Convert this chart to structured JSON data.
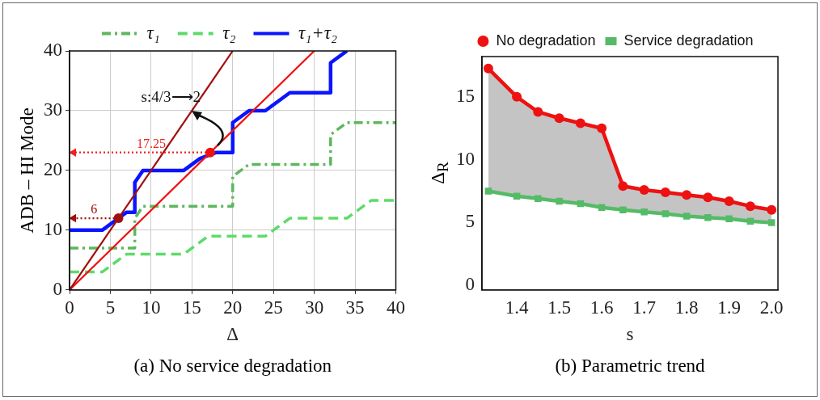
{
  "chart_data": [
    {
      "type": "line",
      "xlabel": "Δ",
      "ylabel": "ADB – HI Mode",
      "xlim": [
        0,
        40
      ],
      "ylim": [
        0,
        40
      ],
      "xticks": [
        0,
        5,
        10,
        15,
        20,
        25,
        30,
        35,
        40
      ],
      "yticks": [
        0,
        10,
        20,
        30,
        40
      ],
      "grid": true,
      "legend": "top",
      "marker": "none",
      "annotations": [
        {
          "text": "s:4/3⟶2",
          "x": 15,
          "y": 30
        },
        {
          "text": "17.25",
          "x": 10,
          "y": 23
        },
        {
          "text": "6",
          "x": 3,
          "y": 12
        },
        "(a) No service degradation"
      ],
      "series": [
        {
          "name": "τ₁",
          "color": "#5cb85c",
          "line_style": "dashdot",
          "x": [
            0,
            8,
            8,
            9,
            20,
            20,
            22,
            32,
            32,
            34,
            40
          ],
          "values": [
            7,
            7,
            12,
            14,
            14,
            19,
            21,
            21,
            26,
            28,
            28
          ]
        },
        {
          "name": "τ₂",
          "color": "#5ddb6a",
          "line_style": "dashed",
          "x": [
            0,
            4,
            7,
            14,
            17,
            24,
            27,
            34,
            37,
            40
          ],
          "values": [
            3,
            3,
            6,
            6,
            9,
            9,
            12,
            12,
            15,
            15
          ]
        },
        {
          "name": "τ₁+τ₂",
          "color": "#0a14ff",
          "x": [
            0,
            4,
            6,
            7,
            8,
            8,
            9,
            10,
            14,
            16,
            18,
            20,
            20,
            22,
            24,
            27,
            32,
            32,
            34
          ],
          "values": [
            10,
            10,
            12,
            13,
            13,
            18,
            20,
            20,
            20,
            22,
            23,
            23,
            28,
            30,
            30,
            33,
            33,
            38,
            40
          ]
        },
        {
          "color": "#ee1111",
          "x": [
            0,
            30
          ],
          "values": [
            0,
            40
          ]
        },
        {
          "color": "#a01010",
          "x": [
            0,
            20
          ],
          "values": [
            0,
            40
          ]
        },
        {
          "color": "#ee2222",
          "line_style": "dotted",
          "marker": "triangle",
          "x": [
            17.25,
            0.5
          ],
          "values": [
            23,
            23
          ]
        },
        {
          "color": "#a01010",
          "line_style": "dotted",
          "marker": "triangle",
          "x": [
            6,
            0.5
          ],
          "values": [
            12,
            12
          ]
        },
        {
          "type": "scatter",
          "color": "#ee1111",
          "marker": "circle",
          "x": [
            17.25
          ],
          "values": [
            23
          ]
        },
        {
          "type": "scatter",
          "color": "#a01010",
          "marker": "circle",
          "x": [
            6
          ],
          "values": [
            12
          ]
        }
      ]
    },
    {
      "type": "line",
      "xlabel": "s",
      "ylabel": "Δ$_{R}$",
      "x": [
        1.333,
        1.4,
        1.45,
        1.5,
        1.55,
        1.6,
        1.65,
        1.7,
        1.75,
        1.8,
        1.85,
        1.9,
        1.95,
        2.0
      ],
      "xlim": [
        1.318,
        2.015
      ],
      "ylim": [
        -0.36,
        18.2
      ],
      "xticks": [
        1.4,
        1.5,
        1.6,
        1.7,
        1.8,
        1.9,
        {
          "value": 2,
          "label": "2.0"
        }
      ],
      "yticks": [
        0,
        5,
        10,
        15
      ],
      "legend": "top",
      "annotations": [
        "(b) Parametric trend"
      ],
      "series": [
        {
          "name": "No degradation",
          "color": "#ee1111",
          "marker": "circle",
          "values": [
            17.25,
            15.0,
            13.8,
            13.3,
            12.9,
            12.5,
            7.9,
            7.6,
            7.4,
            7.2,
            7.0,
            6.7,
            6.3,
            6.0
          ],
          "lower": [
            7.5,
            7.1,
            6.9,
            6.7,
            6.5,
            6.2,
            6.0,
            5.85,
            5.7,
            5.5,
            5.4,
            5.3,
            5.1,
            5.0
          ],
          "upper": [
            17.25,
            15.0,
            13.8,
            13.3,
            12.9,
            12.5,
            7.9,
            7.6,
            7.4,
            7.2,
            7.0,
            6.7,
            6.3,
            6.0
          ]
        },
        {
          "name": "Service degradation",
          "color": "#55bb66",
          "marker": "square",
          "values": [
            7.5,
            7.1,
            6.9,
            6.7,
            6.5,
            6.2,
            6.0,
            5.85,
            5.7,
            5.5,
            5.4,
            5.3,
            5.1,
            5.0
          ]
        }
      ]
    }
  ]
}
